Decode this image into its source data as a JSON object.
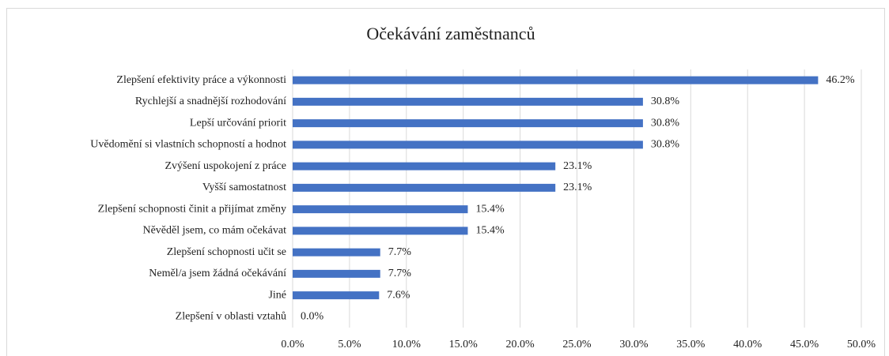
{
  "chart_data": {
    "type": "bar",
    "orientation": "horizontal",
    "title": "Očekávání zaměstnanců",
    "categories": [
      "Zlepšení efektivity práce a výkonnosti",
      "Rychlejší a snadnější rozhodování",
      "Lepší určování priorit",
      "Uvědomění si vlastních schopností a hodnot",
      "Zvýšení uspokojení z práce",
      "Vyšší samostatnost",
      "Zlepšení schopnosti činit a přijímat změny",
      "Něvěděl jsem, co mám očekávat",
      "Zlepšení schopnosti učit se",
      "Neměl/a jsem žádná očekávání",
      "Jiné",
      "Zlepšení v oblasti vztahů"
    ],
    "values": [
      46.2,
      30.8,
      30.8,
      30.8,
      23.1,
      23.1,
      15.4,
      15.4,
      7.7,
      7.7,
      7.6,
      0.0
    ],
    "value_labels": [
      "46.2%",
      "30.8%",
      "30.8%",
      "30.8%",
      "23.1%",
      "23.1%",
      "15.4%",
      "15.4%",
      "7.7%",
      "7.7%",
      "7.6%",
      "0.0%"
    ],
    "color": "#4472c4",
    "xlim": [
      0,
      50
    ],
    "xticks": [
      {
        "value": 0,
        "label": "0.0%"
      },
      {
        "value": 5,
        "label": "5.0%"
      },
      {
        "value": 10,
        "label": "10.0%"
      },
      {
        "value": 15,
        "label": "15.0%"
      },
      {
        "value": 20,
        "label": "20.0%"
      },
      {
        "value": 25,
        "label": "25.0%"
      },
      {
        "value": 30,
        "label": "30.0%"
      },
      {
        "value": 35,
        "label": "35.0%"
      },
      {
        "value": 40,
        "label": "40.0%"
      },
      {
        "value": 45,
        "label": "45.0%"
      },
      {
        "value": 50,
        "label": "50.0%"
      }
    ],
    "grid": true
  }
}
